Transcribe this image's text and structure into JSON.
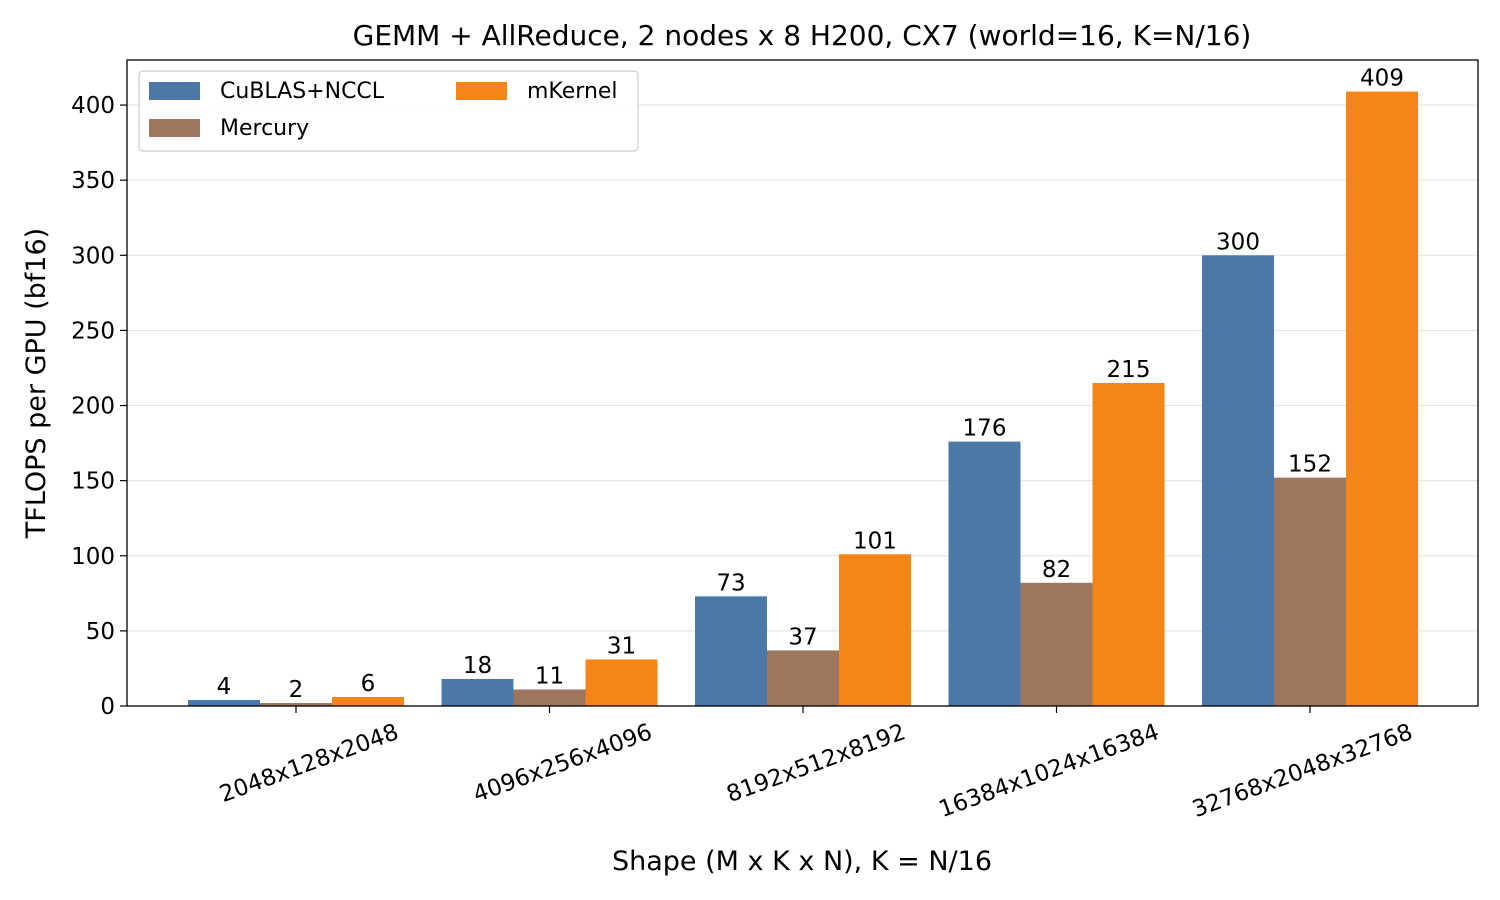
{
  "chart_data": {
    "type": "bar",
    "title": "GEMM + AllReduce, 2 nodes x 8 H200, CX7 (world=16, K=N/16)",
    "xlabel": "Shape (M x K x N), K = N/16",
    "ylabel": "TFLOPS per GPU (bf16)",
    "categories": [
      "2048x128x2048",
      "4096x256x4096",
      "8192x512x8192",
      "16384x1024x16384",
      "32768x2048x32768"
    ],
    "series": [
      {
        "name": "CuBLAS+NCCL",
        "color": "#4c78a8",
        "values": [
          4,
          18,
          73,
          176,
          300
        ]
      },
      {
        "name": "Mercury",
        "color": "#9e765f",
        "values": [
          2,
          11,
          37,
          82,
          152
        ]
      },
      {
        "name": "mKernel",
        "color": "#f58518",
        "values": [
          6,
          31,
          101,
          215,
          409
        ]
      }
    ],
    "ylim": [
      0,
      430
    ],
    "yticks": [
      0,
      50,
      100,
      150,
      200,
      250,
      300,
      350,
      400
    ],
    "grid": "horizontal",
    "legend_position": "top-left"
  }
}
